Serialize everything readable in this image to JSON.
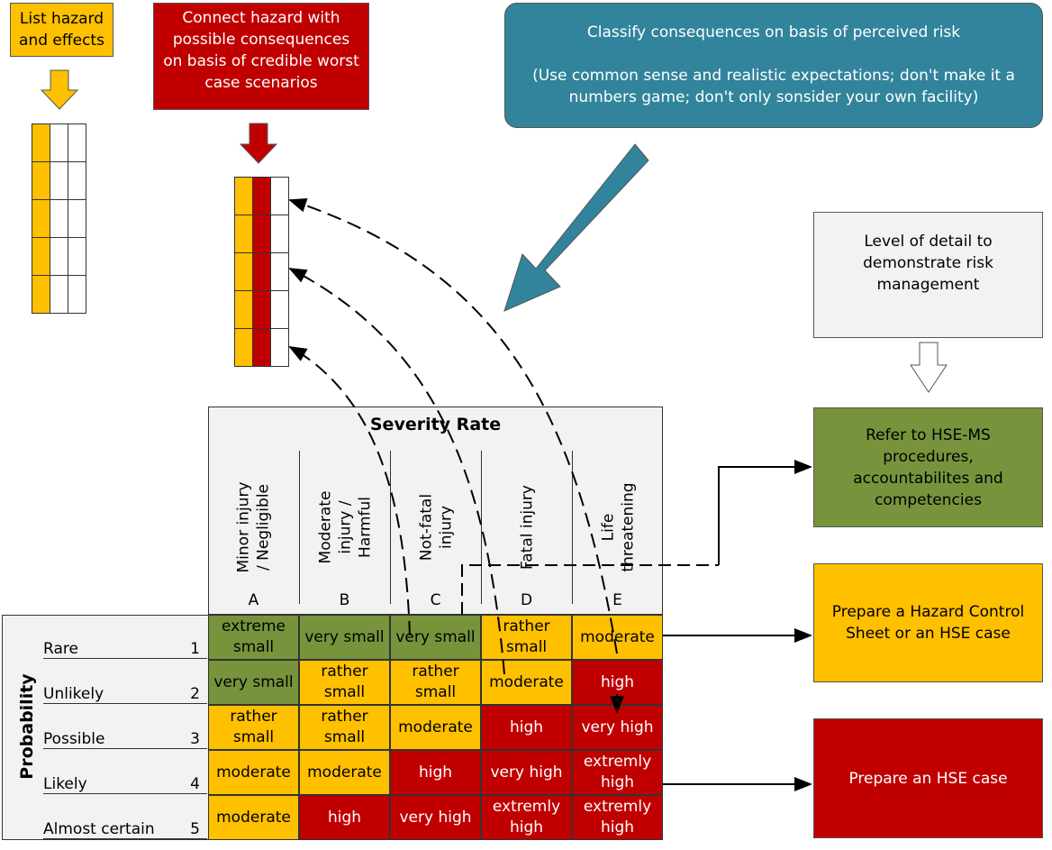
{
  "steps": {
    "list_hazard": "List hazard and effects",
    "connect": "Connect hazard with possible consequences on basis of credible worst case scenarios",
    "classify_title": "Classify consequences on basis of perceived risk",
    "classify_note": "(Use common sense and realistic expectations; don't make it a numbers game; don't only sonsider your own facility)",
    "detail": "Level of detail to demonstrate risk management",
    "refer": "Refer to HSE-MS procedures, accountabilites and competencies",
    "prepare_sheet": "Prepare a Hazard Control Sheet or an HSE case",
    "prepare_case": "Prepare an HSE case"
  },
  "matrix": {
    "severity_title": "Severity Rate",
    "probability_title": "Probability",
    "columns": [
      {
        "label": "Minor injury / Negligible",
        "letter": "A"
      },
      {
        "label": "Moderate injury / Harmful",
        "letter": "B"
      },
      {
        "label": "Not-fatal injury",
        "letter": "C"
      },
      {
        "label": "Fatal injury",
        "letter": "D"
      },
      {
        "label": "Life threatening",
        "letter": "E"
      }
    ],
    "rows": [
      {
        "label": "Rare",
        "num": "1",
        "cells": [
          "extreme small",
          "very small",
          "very small",
          "rather small",
          "moderate"
        ]
      },
      {
        "label": "Unlikely",
        "num": "2",
        "cells": [
          "very small",
          "rather small",
          "rather small",
          "moderate",
          "high"
        ]
      },
      {
        "label": "Possible",
        "num": "3",
        "cells": [
          "rather small",
          "rather small",
          "moderate",
          "high",
          "very high"
        ]
      },
      {
        "label": "Likely",
        "num": "4",
        "cells": [
          "moderate",
          "moderate",
          "high",
          "very high",
          "extremly high"
        ]
      },
      {
        "label": "Almost certain",
        "num": "5",
        "cells": [
          "moderate",
          "high",
          "very high",
          "extremly high",
          "extremly high"
        ]
      }
    ]
  },
  "colors": {
    "green": "#77933c",
    "yellow": "#ffc000",
    "red": "#c00000",
    "teal": "#31849b",
    "gray": "#f2f2f2"
  }
}
